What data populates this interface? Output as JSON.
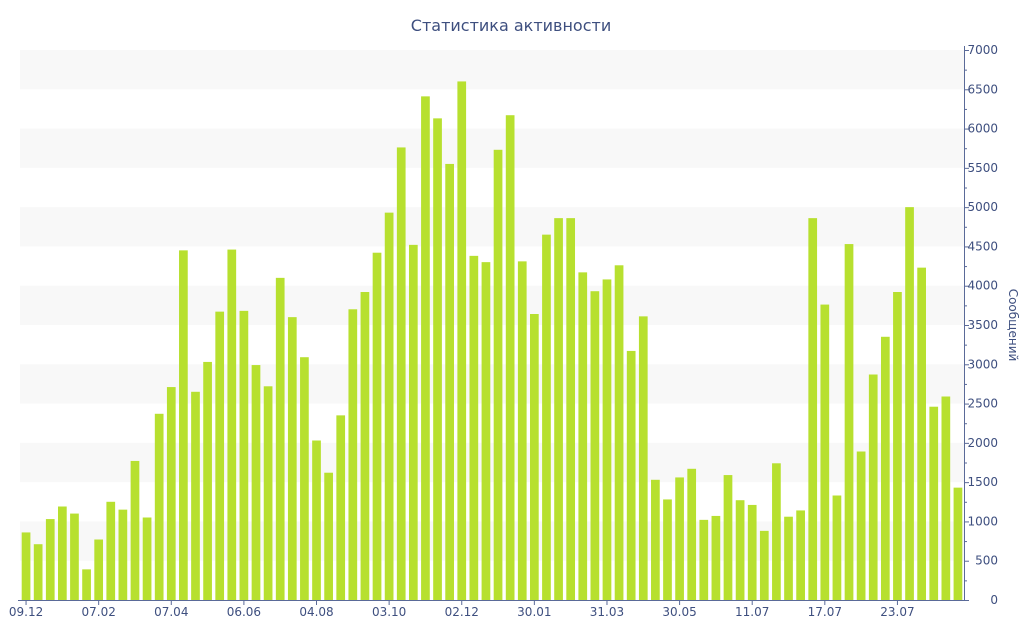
{
  "chart_data": {
    "type": "bar",
    "title": "Статистика активности",
    "xlabel": "",
    "ylabel": "Сообщений",
    "ylim": [
      0,
      7000
    ],
    "y_axis_position": "right",
    "y_ticks": [
      0,
      500,
      1000,
      1500,
      2000,
      2500,
      3000,
      3500,
      4000,
      4500,
      5000,
      5500,
      6000,
      6500,
      7000
    ],
    "grid": "alternating horizontal bands",
    "legend": "none",
    "x_tick_labels": [
      {
        "label": "09.12",
        "index": 0
      },
      {
        "label": "07.02",
        "index": 6
      },
      {
        "label": "07.04",
        "index": 12
      },
      {
        "label": "06.06",
        "index": 18
      },
      {
        "label": "04.08",
        "index": 24
      },
      {
        "label": "03.10",
        "index": 30
      },
      {
        "label": "02.12",
        "index": 36
      },
      {
        "label": "30.01",
        "index": 42
      },
      {
        "label": "31.03",
        "index": 48
      },
      {
        "label": "30.05",
        "index": 54
      },
      {
        "label": "11.07",
        "index": 60
      },
      {
        "label": "17.07",
        "index": 66
      },
      {
        "label": "23.07",
        "index": 72
      }
    ],
    "series": [
      {
        "values": [
          860,
          710,
          1030,
          1190,
          1100,
          390,
          770,
          1250,
          1150,
          1770,
          1050,
          2370,
          2710,
          4450,
          2650,
          3030,
          3670,
          4460,
          3680,
          2990,
          2720,
          4100,
          3600,
          3090,
          2030,
          1620,
          2350,
          3700,
          3920,
          4420,
          4930,
          5760,
          4520,
          6410,
          6130,
          5550,
          6600,
          4380,
          4300,
          5730,
          6170,
          4310,
          3640,
          4650,
          4860,
          4860,
          4170,
          3930,
          4080,
          4260,
          3170,
          3610,
          1530,
          1280,
          1560,
          1670,
          1020,
          1070,
          1590,
          1270,
          1210,
          880,
          1740,
          1060,
          1140,
          4860,
          3760,
          1330,
          4530,
          1890,
          2870,
          3350,
          3920,
          5000,
          4230,
          2460,
          2590,
          1430
        ]
      }
    ]
  },
  "colors": {
    "bar": "#b7e02f",
    "axis": "#5a6a98",
    "text": "#3e4f7f",
    "band": "#f8f8f8",
    "background": "#ffffff"
  }
}
